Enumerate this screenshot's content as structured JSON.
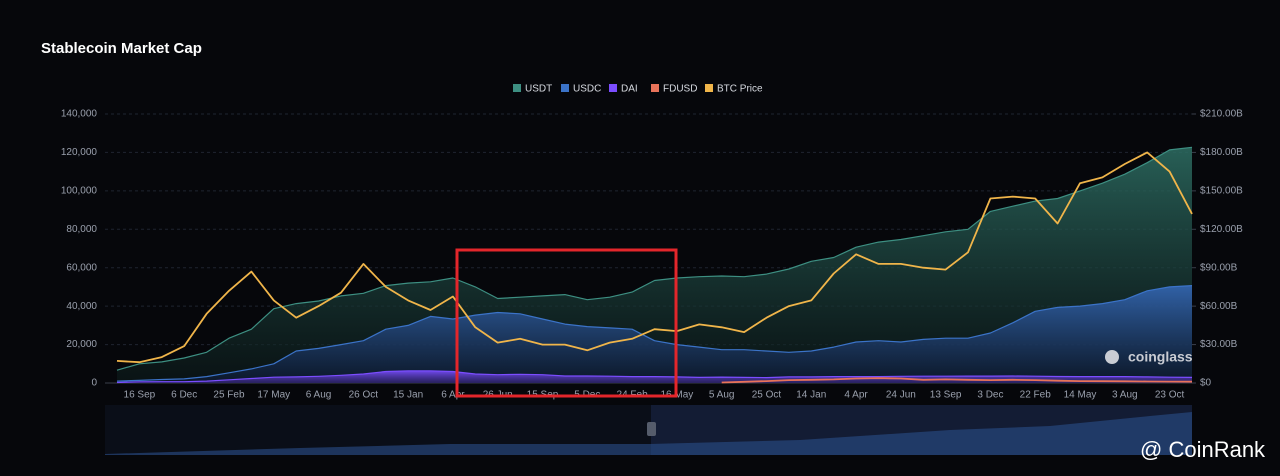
{
  "chart_data": {
    "type": "area",
    "title": "Stablecoin Market Cap",
    "watermark": "coinglass",
    "overlay_text": "@ CoinRank",
    "categories": [
      null,
      "16 Sep",
      null,
      "6 Dec",
      null,
      "25 Feb",
      null,
      "17 May",
      null,
      "6 Aug",
      null,
      "26 Oct",
      null,
      "15 Jan",
      null,
      "6 Apr",
      null,
      "26 Jun",
      null,
      "15 Sep",
      null,
      "5 Dec",
      null,
      "24 Feb",
      null,
      "16 May",
      null,
      "5 Aug",
      null,
      "25 Oct",
      null,
      "14 Jan",
      null,
      "4 Apr",
      null,
      "24 Jun",
      null,
      "13 Sep",
      null,
      "3 Dec",
      null,
      "22 Feb",
      null,
      "14 May",
      null,
      "3 Aug",
      null,
      "23 Oct",
      null
    ],
    "series": [
      {
        "name": "USDT",
        "color": "#3d8f82",
        "style": "area",
        "axis": "y2",
        "values": [
          10,
          15,
          16.5,
          19.5,
          24,
          35,
          42,
          58,
          62,
          64,
          68,
          70,
          76,
          78,
          79,
          82,
          75,
          66,
          67,
          68,
          69,
          65,
          67,
          71,
          80,
          82,
          83,
          83.5,
          83,
          85,
          89,
          95,
          98,
          106,
          110,
          112,
          115,
          118,
          120,
          134,
          138,
          142,
          144,
          150,
          156,
          163,
          172,
          182,
          184
        ]
      },
      {
        "name": "USDC",
        "color": "#3b73c8",
        "style": "area",
        "axis": "y2",
        "values": [
          1.5,
          2,
          2.7,
          3.2,
          5,
          8,
          11,
          15,
          25,
          27,
          30,
          33,
          42,
          45,
          52,
          50,
          53,
          55,
          54,
          50,
          46,
          44,
          43,
          42,
          33,
          30,
          28,
          26,
          26,
          25,
          24,
          25,
          28,
          32,
          33,
          32,
          34,
          35,
          35,
          39,
          47,
          56,
          59,
          60,
          62,
          65,
          72,
          75,
          76
        ]
      },
      {
        "name": "DAI",
        "color": "#7b4dff",
        "style": "area",
        "axis": "y2",
        "values": [
          0.4,
          0.9,
          1,
          1,
          1.5,
          2.5,
          3.5,
          4.5,
          4.8,
          5.2,
          6,
          7,
          9,
          9.5,
          9.5,
          9,
          7,
          6.5,
          6.8,
          6.5,
          5.5,
          5.5,
          5.3,
          5,
          5,
          4.8,
          4.4,
          4.6,
          4.4,
          4.2,
          4.8,
          4.8,
          5,
          5,
          5,
          5.2,
          5.3,
          5.3,
          5.4,
          5.4,
          5.5,
          5.3,
          5.1,
          5,
          5,
          5,
          4.8,
          4.5,
          4.4
        ]
      },
      {
        "name": "FDUSD",
        "color": "#e8735a",
        "style": "line",
        "axis": "y2",
        "values": [
          null,
          null,
          null,
          null,
          null,
          null,
          null,
          null,
          null,
          null,
          null,
          null,
          null,
          null,
          null,
          null,
          null,
          null,
          null,
          null,
          null,
          null,
          null,
          null,
          null,
          null,
          null,
          0.4,
          0.9,
          1.5,
          2.3,
          2.5,
          2.8,
          3.5,
          3.8,
          3.5,
          2.5,
          2.8,
          2.5,
          2.3,
          2.5,
          2.3,
          1.8,
          1.5,
          1.4,
          1.3,
          1.2,
          1.1,
          1.0
        ]
      },
      {
        "name": "BTC Price",
        "color": "#f0b54a",
        "style": "line",
        "axis": "y",
        "values": [
          11500,
          10800,
          13500,
          19200,
          36000,
          48000,
          58000,
          43000,
          34000,
          40000,
          47000,
          62000,
          50000,
          43000,
          38000,
          45000,
          29000,
          21000,
          23000,
          20000,
          20000,
          17000,
          21000,
          23000,
          28000,
          27000,
          30500,
          29000,
          26500,
          34000,
          40000,
          43000,
          57000,
          67000,
          62000,
          62000,
          60000,
          59000,
          68000,
          96000,
          97000,
          96000,
          83000,
          104000,
          107000,
          114000,
          120000,
          110000,
          88000
        ]
      }
    ],
    "ylim": [
      0,
      140000
    ],
    "yticks": [
      0,
      {
        "value": 20000,
        "label": "20,000"
      },
      {
        "value": 40000,
        "label": "40,000"
      },
      {
        "value": 60000,
        "label": "60,000"
      },
      {
        "value": 80000,
        "label": "80,000"
      },
      {
        "value": 100000,
        "label": "100,000"
      },
      {
        "value": 120000,
        "label": "120,000"
      },
      {
        "value": 140000,
        "label": "140,000"
      }
    ],
    "y2lim": [
      0,
      210
    ],
    "y2ticks": [
      {
        "value": 0,
        "label": "$0"
      },
      {
        "value": 30,
        "label": "$30.00B"
      },
      {
        "value": 60,
        "label": "$60.00B"
      },
      {
        "value": 90,
        "label": "$90.00B"
      },
      {
        "value": 120,
        "label": "$120.00B"
      },
      {
        "value": 150,
        "label": "$150.00B"
      },
      {
        "value": 180,
        "label": "$180.00B"
      },
      {
        "value": 210,
        "label": "$210.00B"
      }
    ],
    "grid": true,
    "legend": "top"
  }
}
